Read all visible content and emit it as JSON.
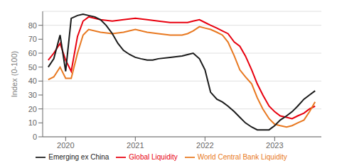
{
  "chart_data": {
    "type": "line",
    "ylabel": "Index (0-100)",
    "xlim": [
      2019.67,
      2023.67
    ],
    "xticks": [
      2020,
      2021,
      2022,
      2023
    ],
    "ylim": [
      0,
      90
    ],
    "yticks": [
      0,
      10,
      20,
      30,
      40,
      50,
      60,
      70,
      80
    ],
    "grid": true,
    "legend": "bottom",
    "series": [
      {
        "name": "Global Liquidity",
        "color": "#e8000e",
        "x": [
          2019.75,
          2019.83,
          2019.92,
          2020.0,
          2020.08,
          2020.17,
          2020.25,
          2020.33,
          2020.5,
          2020.67,
          2020.83,
          2021.0,
          2021.17,
          2021.33,
          2021.5,
          2021.67,
          2021.75,
          2021.83,
          2021.92,
          2022.0,
          2022.08,
          2022.17,
          2022.25,
          2022.33,
          2022.42,
          2022.5,
          2022.58,
          2022.67,
          2022.75,
          2022.83,
          2022.92,
          2023.0,
          2023.08,
          2023.17,
          2023.25,
          2023.33,
          2023.42,
          2023.5,
          2023.58
        ],
        "values": [
          55,
          60,
          67,
          55,
          47,
          72,
          83,
          86,
          84,
          83,
          84,
          85,
          84,
          83,
          82,
          82,
          82,
          83,
          84,
          82,
          80,
          78,
          76,
          74,
          68,
          65,
          58,
          48,
          38,
          30,
          22,
          18,
          15,
          14,
          13,
          15,
          17,
          20,
          22
        ]
      },
      {
        "name": "World Central Bank Liquidity",
        "color": "#e87820",
        "x": [
          2019.75,
          2019.83,
          2019.92,
          2020.0,
          2020.08,
          2020.17,
          2020.25,
          2020.33,
          2020.5,
          2020.67,
          2020.83,
          2021.0,
          2021.17,
          2021.33,
          2021.5,
          2021.67,
          2021.75,
          2021.83,
          2021.92,
          2022.0,
          2022.08,
          2022.17,
          2022.25,
          2022.33,
          2022.42,
          2022.5,
          2022.58,
          2022.67,
          2022.75,
          2022.83,
          2022.92,
          2023.0,
          2023.08,
          2023.17,
          2023.25,
          2023.33,
          2023.42,
          2023.5,
          2023.58
        ],
        "values": [
          41,
          43,
          50,
          42,
          42,
          60,
          73,
          77,
          75,
          74,
          75,
          77,
          75,
          74,
          73,
          73,
          74,
          76,
          79,
          78,
          77,
          75,
          73,
          68,
          58,
          48,
          43,
          38,
          28,
          20,
          13,
          9,
          8,
          7,
          8,
          10,
          12,
          18,
          25
        ]
      },
      {
        "name": "Emerging ex China",
        "color": "#1a1a1a",
        "x": [
          2019.75,
          2019.83,
          2019.92,
          2020.0,
          2020.08,
          2020.17,
          2020.25,
          2020.33,
          2020.42,
          2020.5,
          2020.58,
          2020.67,
          2020.75,
          2020.83,
          2020.92,
          2021.0,
          2021.08,
          2021.17,
          2021.25,
          2021.33,
          2021.5,
          2021.67,
          2021.75,
          2021.83,
          2021.92,
          2022.0,
          2022.08,
          2022.17,
          2022.25,
          2022.33,
          2022.42,
          2022.5,
          2022.58,
          2022.67,
          2022.75,
          2022.83,
          2022.92,
          2023.0,
          2023.08,
          2023.17,
          2023.25,
          2023.33,
          2023.42,
          2023.5,
          2023.58
        ],
        "values": [
          50,
          56,
          73,
          47,
          85,
          87,
          88,
          87,
          86,
          84,
          80,
          74,
          67,
          62,
          59,
          57,
          56,
          55,
          55,
          56,
          57,
          58,
          59,
          60,
          56,
          48,
          32,
          27,
          25,
          22,
          18,
          14,
          10,
          7,
          5,
          5,
          5,
          8,
          12,
          15,
          18,
          22,
          27,
          30,
          33
        ]
      }
    ]
  }
}
